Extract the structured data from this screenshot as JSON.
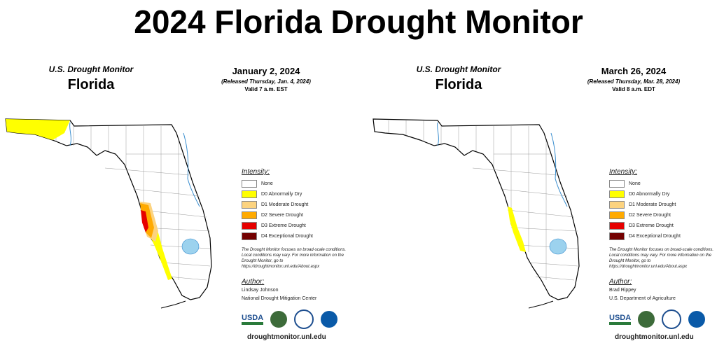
{
  "title": "2024 Florida Drought Monitor",
  "legend": {
    "heading": "Intensity:",
    "items": [
      {
        "label": "None",
        "color": "#ffffff"
      },
      {
        "label": "D0 Abnormally Dry",
        "color": "#ffff00"
      },
      {
        "label": "D1 Moderate Drought",
        "color": "#fcd37f"
      },
      {
        "label": "D2 Severe Drought",
        "color": "#ffaa00"
      },
      {
        "label": "D3 Extreme Drought",
        "color": "#e60000"
      },
      {
        "label": "D4 Exceptional Drought",
        "color": "#730000"
      }
    ],
    "note": "The Drought Monitor focuses on broad-scale conditions. Local conditions may vary. For more information on the Drought Monitor, go to https://droughtmonitor.unl.edu/About.aspx",
    "author_heading": "Author:",
    "url": "droughtmonitor.unl.edu",
    "logos": [
      "USDA",
      "NDMC",
      "Dept. of Commerce",
      "NOAA"
    ]
  },
  "panels": [
    {
      "header": "U.S. Drought Monitor",
      "state": "Florida",
      "date": "January 2, 2024",
      "released": "(Released Thursday, Jan. 4, 2024)",
      "valid": "Valid 7 a.m. EST",
      "author_name": "Lindsay Johnson",
      "author_org": "National Drought Mitigation Center",
      "drought_areas": [
        "Panhandle west: D0",
        "Tampa Bay / west-central coast: D0–D3",
        "Southwest coast: D0"
      ]
    },
    {
      "header": "U.S. Drought Monitor",
      "state": "Florida",
      "date": "March 26, 2024",
      "released": "(Released Thursday, Mar. 28, 2024)",
      "valid": "Valid 8 a.m. EDT",
      "author_name": "Brad Rippey",
      "author_org": "U.S. Department of Agriculture",
      "drought_areas": [
        "Southwest coast: D0"
      ]
    }
  ]
}
